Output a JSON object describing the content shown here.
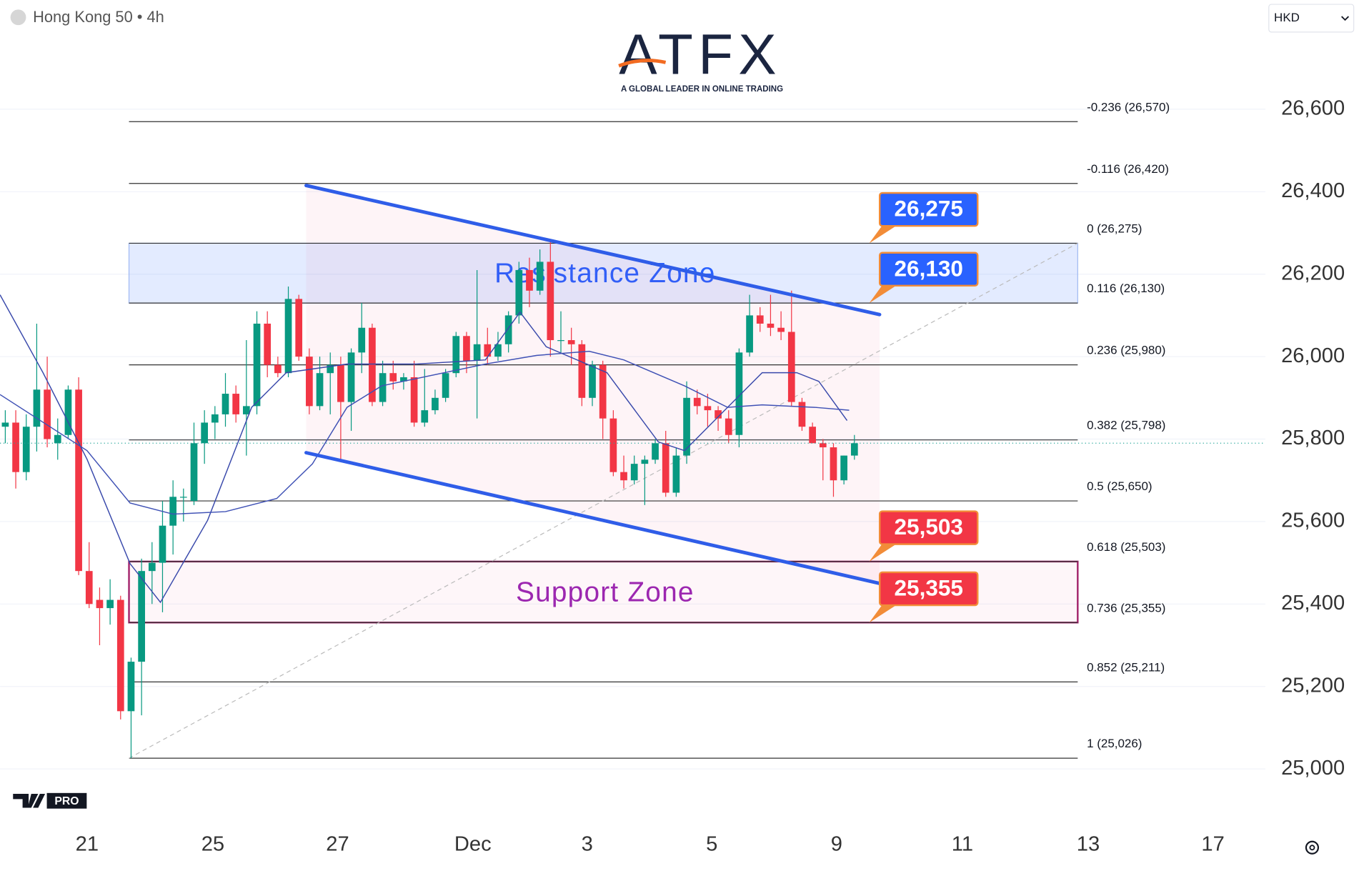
{
  "chart_data": {
    "type": "candlestick",
    "title": "Hong Kong 50 • 4h",
    "currency": "HKD",
    "brand": "ATFX",
    "tagline": "A GLOBAL LEADER IN ONLINE TRADING",
    "badge": "PRO",
    "up_color": "#089981",
    "down_color": "#f23645",
    "open": [
      25830,
      25840,
      25720,
      25830,
      25920,
      25790,
      25810,
      25920,
      25480,
      25410,
      25390,
      25410,
      25140,
      25260,
      25480,
      25500,
      25590,
      25660,
      25650,
      25790,
      25840,
      25860,
      25910,
      25860,
      25880,
      26080,
      25980,
      25960,
      26140,
      26000,
      25880,
      25960,
      25980,
      25890,
      26010,
      26070,
      25890,
      25960,
      25940,
      25950,
      25840,
      25870,
      25900,
      25960,
      26050,
      25990,
      26030,
      26000,
      26030,
      26100,
      26210,
      26160,
      26230,
      26040,
      26040,
      26030,
      25900,
      25980,
      25850,
      25720,
      25700,
      25740,
      25750,
      25790,
      25670,
      25760,
      25900,
      25880,
      25870,
      25850,
      25810,
      26010,
      26100,
      26080,
      26070,
      26060,
      25890,
      25830,
      25790,
      25780,
      25700,
      25760
    ],
    "high": [
      25870,
      25870,
      25860,
      26080,
      26000,
      25850,
      25930,
      25950,
      25550,
      25440,
      25460,
      25420,
      25270,
      25510,
      25550,
      25650,
      25700,
      25680,
      25840,
      25870,
      25880,
      25960,
      25930,
      26040,
      26110,
      26110,
      26000,
      26170,
      26150,
      26020,
      26000,
      26010,
      26000,
      26020,
      26130,
      26080,
      25990,
      25990,
      25960,
      25990,
      25970,
      25920,
      25970,
      26060,
      26060,
      26210,
      26070,
      26060,
      26110,
      26230,
      26240,
      26260,
      26280,
      26110,
      26070,
      26040,
      25990,
      25990,
      25870,
      25760,
      25760,
      25760,
      25800,
      25820,
      25780,
      25940,
      25920,
      25910,
      25880,
      25870,
      26020,
      26150,
      26120,
      26150,
      26110,
      26160,
      25900,
      25840,
      25800,
      25790,
      25760,
      25810
    ],
    "low": [
      25790,
      25680,
      25700,
      25770,
      25780,
      25750,
      25800,
      25470,
      25390,
      25300,
      25350,
      25120,
      25026,
      25130,
      25400,
      25380,
      25520,
      25600,
      25640,
      25740,
      25800,
      25830,
      25840,
      25760,
      25860,
      25950,
      25950,
      25950,
      25990,
      25860,
      25870,
      25860,
      25750,
      25820,
      25960,
      25880,
      25880,
      25920,
      25920,
      25830,
      25830,
      25860,
      25890,
      25950,
      25960,
      25850,
      25980,
      25990,
      26010,
      26080,
      26120,
      26150,
      26000,
      26010,
      25980,
      25880,
      25880,
      25800,
      25710,
      25680,
      25690,
      25640,
      25740,
      25660,
      25660,
      25740,
      25860,
      25830,
      25820,
      25790,
      25780,
      26000,
      26060,
      26050,
      26040,
      25880,
      25820,
      25790,
      25700,
      25660,
      25690,
      25750
    ],
    "close": [
      25840,
      25720,
      25830,
      25920,
      25800,
      25810,
      25920,
      25480,
      25400,
      25390,
      25410,
      25140,
      25260,
      25480,
      25500,
      25590,
      25660,
      25660,
      25790,
      25840,
      25860,
      25910,
      25860,
      25880,
      26080,
      25980,
      25960,
      26140,
      26000,
      25880,
      25960,
      25980,
      25890,
      26010,
      26070,
      25890,
      25960,
      25940,
      25950,
      25840,
      25870,
      25900,
      25960,
      26050,
      25990,
      26030,
      26000,
      26030,
      26100,
      26210,
      26160,
      26230,
      26040,
      26040,
      26030,
      25900,
      25980,
      25850,
      25720,
      25700,
      25740,
      25750,
      25790,
      25670,
      25760,
      25900,
      25880,
      25870,
      25850,
      25810,
      26010,
      26100,
      26080,
      26070,
      26060,
      25890,
      25830,
      25790,
      25780,
      25700,
      25760,
      25790
    ],
    "moving_averages": [
      {
        "color": "#3949ab",
        "x": [
          -0.5,
          3.6,
          7.8,
          11.9,
          14.8,
          19.3,
          23.5,
          26.8,
          32.6,
          39.2,
          45.8,
          49.1,
          51.6,
          57.4,
          62.3,
          64.8,
          68.9,
          72.2,
          75.5,
          77.6,
          80.3
        ],
        "values": [
          26150,
          25961,
          25751,
          25498,
          25404,
          25603,
          25877,
          25961,
          25982,
          25982,
          25992,
          26108,
          26024,
          25961,
          25793,
          25772,
          25877,
          25961,
          25961,
          25940,
          25845
        ]
      },
      {
        "color": "#3f51b5",
        "x": [
          -0.5,
          7.8,
          11.9,
          16.0,
          21.0,
          25.9,
          29.3,
          32.6,
          35.9,
          45.8,
          50.7,
          55.7,
          59.0,
          64.8,
          68.9,
          72.2,
          77.2,
          80.5
        ],
        "values": [
          25908,
          25772,
          25645,
          25618,
          25624,
          25656,
          25740,
          25877,
          25929,
          25982,
          26003,
          26013,
          25992,
          25929,
          25877,
          25883,
          25877,
          25870
        ]
      }
    ],
    "fib": {
      "x": [
        11.8,
        102.3
      ],
      "levels": [
        {
          "value": 26570,
          "label": "-0.236 (26,570)"
        },
        {
          "value": 26420,
          "label": "-0.116 (26,420)"
        },
        {
          "value": 26275,
          "label": "0 (26,275)"
        },
        {
          "value": 26130,
          "label": "0.116 (26,130)"
        },
        {
          "value": 25980,
          "label": "0.236 (25,980)"
        },
        {
          "value": 25798,
          "label": "0.382 (25,798)"
        },
        {
          "value": 25650,
          "label": "0.5 (25,650)"
        },
        {
          "value": 25503,
          "label": "0.618 (25,503)"
        },
        {
          "value": 25355,
          "label": "0.736 (25,355)"
        },
        {
          "value": 25211,
          "label": "0.852 (25,211)"
        },
        {
          "value": 25026,
          "label": "1 (25,026)"
        }
      ]
    },
    "zones": [
      {
        "label": "Resistance Zone",
        "range": [
          26130,
          26275
        ],
        "color": "#2962ff"
      },
      {
        "label": "Support Zone",
        "range": [
          25355,
          25503
        ],
        "color": "#9c27b0"
      }
    ],
    "channel": [
      {
        "x": [
          28.7,
          83.4
        ],
        "values": [
          26415,
          26102
        ]
      },
      {
        "x": [
          28.7,
          83.4
        ],
        "values": [
          25767,
          25450
        ]
      }
    ],
    "callouts": [
      {
        "value": 26275,
        "label": "26,275",
        "color": "#2962ff"
      },
      {
        "value": 26130,
        "label": "26,130",
        "color": "#2962ff"
      },
      {
        "value": 25503,
        "label": "25,503",
        "color": "#f23645"
      },
      {
        "value": 25355,
        "label": "25,355",
        "color": "#f23645"
      }
    ],
    "xlim": [
      -0.5,
      120.2
    ],
    "ylim": [
      24868,
      26865
    ],
    "xticks": [
      {
        "value": 7.8,
        "label": "21"
      },
      {
        "value": 19.8,
        "label": "25"
      },
      {
        "value": 31.7,
        "label": "27"
      },
      {
        "value": 44.6,
        "label": "Dec"
      },
      {
        "value": 55.5,
        "label": "3"
      },
      {
        "value": 67.4,
        "label": "5"
      },
      {
        "value": 79.3,
        "label": "9"
      },
      {
        "value": 91.3,
        "label": "11"
      },
      {
        "value": 103.3,
        "label": "13"
      },
      {
        "value": 115.2,
        "label": "17"
      }
    ],
    "yticks": [
      {
        "value": 25000,
        "label": "25,000"
      },
      {
        "value": 25200,
        "label": "25,200"
      },
      {
        "value": 25400,
        "label": "25,400"
      },
      {
        "value": 25600,
        "label": "25,600"
      },
      {
        "value": 25800,
        "label": "25,800"
      },
      {
        "value": 26000,
        "label": "26,000"
      },
      {
        "value": 26200,
        "label": "26,200"
      },
      {
        "value": 26400,
        "label": "26,400"
      },
      {
        "value": 26600,
        "label": "26,600"
      }
    ],
    "grid": true
  }
}
